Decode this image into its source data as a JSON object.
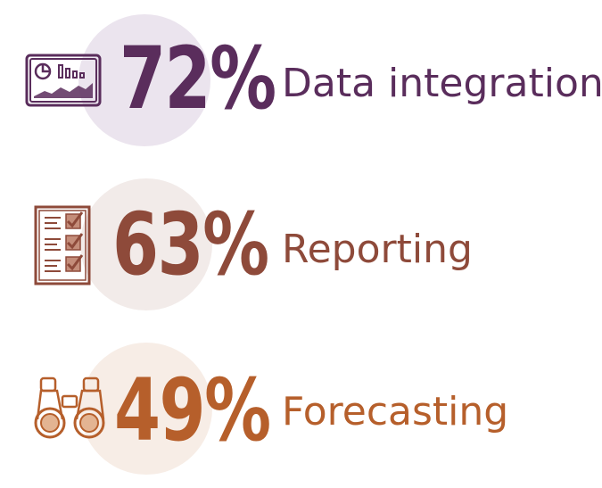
{
  "chart_data": {
    "type": "table",
    "items": [
      {
        "label": "Data integration",
        "value": 72,
        "display": "72%",
        "icon": "dashboard-chart-icon",
        "color": "#5a2d5c",
        "circle_color": "#ebe4ee"
      },
      {
        "label": "Reporting",
        "value": 63,
        "display": "63%",
        "icon": "checklist-icon",
        "color": "#8e4a3a",
        "circle_color": "#f2ebe9"
      },
      {
        "label": "Forecasting",
        "value": 49,
        "display": "49%",
        "icon": "binoculars-icon",
        "color": "#b65f2b",
        "circle_color": "#f7ede6"
      }
    ]
  }
}
